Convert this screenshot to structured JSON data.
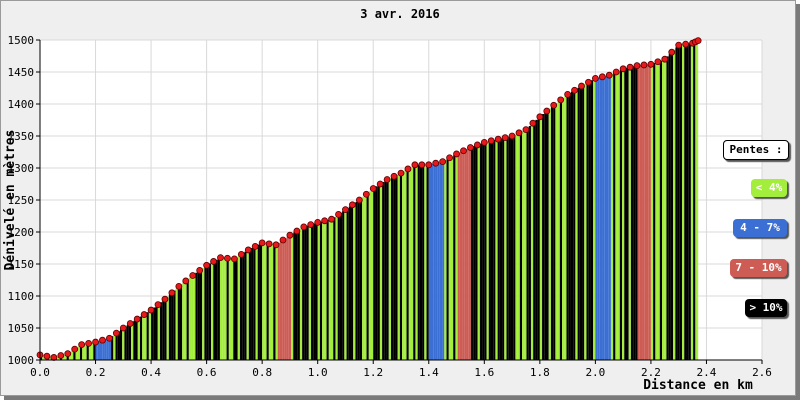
{
  "chart_data": {
    "type": "area",
    "title": "3 avr. 2016",
    "xlabel": "Distance en km",
    "ylabel": "Dénivelé en mètres",
    "xlim": [
      0,
      2.6
    ],
    "ylim": [
      1000,
      1500
    ],
    "x_ticks": [
      "0.0",
      "0.2",
      "0.4",
      "0.6",
      "0.8",
      "1.0",
      "1.2",
      "1.4",
      "1.6",
      "1.8",
      "2.0",
      "2.2",
      "2.4",
      "2.6"
    ],
    "y_ticks": [
      "1000",
      "1050",
      "1100",
      "1150",
      "1200",
      "1250",
      "1300",
      "1350",
      "1400",
      "1450",
      "1500"
    ],
    "grid": true,
    "legend_position": "right",
    "legend_title": "Pentes :",
    "legend": [
      {
        "label": "< 4%",
        "color": "#a3ee3c",
        "text_color": "#ffffff"
      },
      {
        "label": "4 - 7%",
        "color": "#3b6fd3",
        "text_color": "#ffffff"
      },
      {
        "label": "7 - 10%",
        "color": "#cd5c54",
        "text_color": "#ffffff"
      },
      {
        "label": "> 10%",
        "color": "#000000",
        "text_color": "#ffffff"
      }
    ],
    "marker_color": "#e8181c",
    "x": [
      0.0,
      0.05,
      0.1,
      0.15,
      0.2,
      0.25,
      0.3,
      0.35,
      0.4,
      0.45,
      0.5,
      0.55,
      0.6,
      0.65,
      0.7,
      0.75,
      0.8,
      0.85,
      0.9,
      0.95,
      1.0,
      1.05,
      1.1,
      1.15,
      1.2,
      1.25,
      1.3,
      1.35,
      1.4,
      1.45,
      1.5,
      1.55,
      1.6,
      1.65,
      1.7,
      1.75,
      1.8,
      1.85,
      1.9,
      1.95,
      2.0,
      2.05,
      2.1,
      2.15,
      2.2,
      2.25,
      2.3,
      2.35,
      2.37
    ],
    "y": [
      1008,
      1004,
      1010,
      1024,
      1028,
      1034,
      1050,
      1064,
      1078,
      1095,
      1115,
      1132,
      1148,
      1160,
      1158,
      1172,
      1183,
      1180,
      1195,
      1208,
      1215,
      1220,
      1235,
      1250,
      1268,
      1282,
      1292,
      1305,
      1305,
      1310,
      1322,
      1332,
      1340,
      1345,
      1350,
      1360,
      1380,
      1398,
      1415,
      1428,
      1440,
      1445,
      1455,
      1460,
      1462,
      1470,
      1492,
      1495,
      1499
    ],
    "slope_class": [
      "lt4",
      "lt4",
      "lt4",
      "lt4",
      "4to7",
      "gt10",
      "gt10",
      "lt4",
      "gt10",
      "gt10",
      "lt4",
      "gt10",
      "gt10",
      "lt4",
      "gt10",
      "gt10",
      "lt4",
      "7to10",
      "gt10",
      "gt10",
      "lt4",
      "gt10",
      "gt10",
      "lt4",
      "gt10",
      "gt10",
      "lt4",
      "gt10",
      "4to7",
      "lt4",
      "7to10",
      "gt10",
      "gt10",
      "gt10",
      "lt4",
      "gt10",
      "gt10",
      "lt4",
      "gt10",
      "gt10",
      "4to7",
      "lt4",
      "gt10",
      "7to10",
      "lt4",
      "gt10",
      "gt10",
      "lt4"
    ]
  }
}
